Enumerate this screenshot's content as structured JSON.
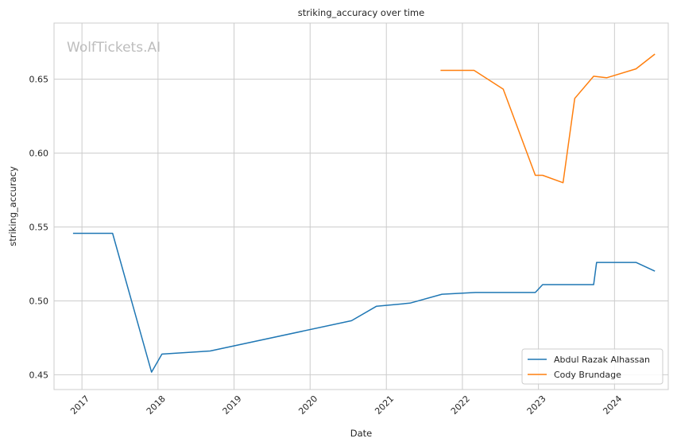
{
  "chart_data": {
    "type": "line",
    "title": "striking_accuracy over time",
    "xlabel": "Date",
    "ylabel": "striking_accuracy",
    "watermark": "WolfTickets.AI",
    "x_axis_type": "date",
    "xlim": [
      "2016-08-20",
      "2024-09-15"
    ],
    "ylim": [
      0.44,
      0.688
    ],
    "x_ticks": [
      "2017-01-01",
      "2018-01-01",
      "2019-01-01",
      "2020-01-01",
      "2021-01-01",
      "2022-01-01",
      "2023-01-01",
      "2024-01-01"
    ],
    "x_tick_labels": [
      "2017",
      "2018",
      "2019",
      "2020",
      "2021",
      "2022",
      "2023",
      "2024"
    ],
    "y_ticks": [
      0.45,
      0.5,
      0.55,
      0.6,
      0.65
    ],
    "y_tick_labels": [
      "0.45",
      "0.50",
      "0.55",
      "0.60",
      "0.65"
    ],
    "grid": true,
    "legend_position": "lower-right",
    "series": [
      {
        "name": "Abdul Razak Alhassan",
        "color": "#1f77b4",
        "points": [
          [
            "2016-11-19",
            0.5457
          ],
          [
            "2017-05-28",
            0.5457
          ],
          [
            "2017-12-01",
            0.4518
          ],
          [
            "2018-01-20",
            0.464
          ],
          [
            "2018-09-08",
            0.4661
          ],
          [
            "2020-07-18",
            0.4866
          ],
          [
            "2020-11-14",
            0.4963
          ],
          [
            "2021-04-24",
            0.4985
          ],
          [
            "2021-09-25",
            0.5045
          ],
          [
            "2022-03-05",
            0.5057
          ],
          [
            "2022-12-17",
            0.5057
          ],
          [
            "2023-01-21",
            0.511
          ],
          [
            "2023-09-23",
            0.511
          ],
          [
            "2023-10-07",
            0.526
          ],
          [
            "2024-04-13",
            0.526
          ],
          [
            "2024-07-13",
            0.5201
          ]
        ]
      },
      {
        "name": "Cody Brundage",
        "color": "#ff7f0e",
        "points": [
          [
            "2021-09-18",
            0.656
          ],
          [
            "2022-02-26",
            0.656
          ],
          [
            "2022-07-16",
            0.6433
          ],
          [
            "2022-12-17",
            0.585
          ],
          [
            "2023-01-21",
            0.585
          ],
          [
            "2023-04-29",
            0.58
          ],
          [
            "2023-06-24",
            0.637
          ],
          [
            "2023-09-23",
            0.652
          ],
          [
            "2023-11-25",
            0.651
          ],
          [
            "2024-04-13",
            0.657
          ],
          [
            "2024-07-13",
            0.667
          ]
        ]
      }
    ]
  }
}
